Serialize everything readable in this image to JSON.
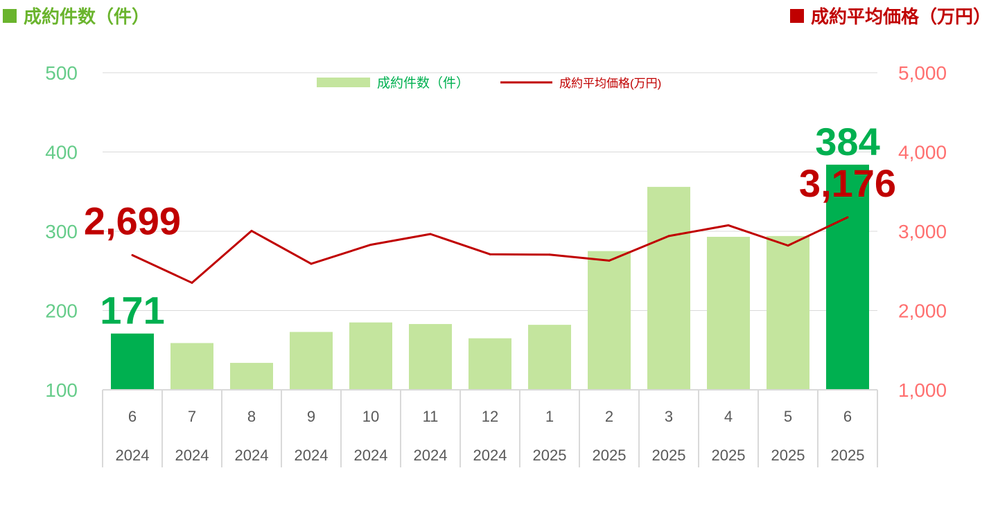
{
  "left_header": {
    "text": "成約件数（件）",
    "color": "#6ab42d"
  },
  "right_header": {
    "text": "成約平均価格（万円）",
    "color": "#c00000"
  },
  "colors": {
    "bar_light": "#c4e59e",
    "bar_highlight": "#00b050",
    "line": "#c00000",
    "left_axis": "#66cc8a",
    "right_axis": "#ff7070",
    "grid": "#d9d9d9",
    "axis_text": "#595959"
  },
  "chart_data": {
    "type": "bar",
    "categories": [
      "6",
      "7",
      "8",
      "9",
      "10",
      "11",
      "12",
      "1",
      "2",
      "3",
      "4",
      "5",
      "6"
    ],
    "years": [
      "2024",
      "2024",
      "2024",
      "2024",
      "2024",
      "2024",
      "2024",
      "2025",
      "2025",
      "2025",
      "2025",
      "2025",
      "2025"
    ],
    "series": [
      {
        "name": "成約件数（件）",
        "type": "bar",
        "axis": "left",
        "values": [
          171,
          159,
          134,
          173,
          185,
          183,
          165,
          182,
          275,
          356,
          293,
          294,
          384
        ],
        "highlight_indices": [
          0,
          12
        ]
      },
      {
        "name": "成約平均価格(万円)",
        "type": "line",
        "axis": "right",
        "values": [
          2699,
          2350,
          3005,
          2590,
          2830,
          2965,
          2710,
          2705,
          2630,
          2940,
          3075,
          2820,
          3176
        ]
      }
    ],
    "ylim_left": [
      100,
      500
    ],
    "yticks_left": [
      "100",
      "200",
      "300",
      "400",
      "500"
    ],
    "ylim_right": [
      1000,
      5000
    ],
    "yticks_right": [
      "1,000",
      "2,000",
      "3,000",
      "4,000",
      "5,000"
    ],
    "annotations": [
      {
        "series": 0,
        "index": 0,
        "text": "171"
      },
      {
        "series": 0,
        "index": 12,
        "text": "384"
      },
      {
        "series": 1,
        "index": 0,
        "text": "2,699"
      },
      {
        "series": 1,
        "index": 12,
        "text": "3,176"
      }
    ],
    "legend": [
      "成約件数（件）",
      "成約平均価格(万円)"
    ],
    "legend_position": "top-center",
    "grid": true
  }
}
